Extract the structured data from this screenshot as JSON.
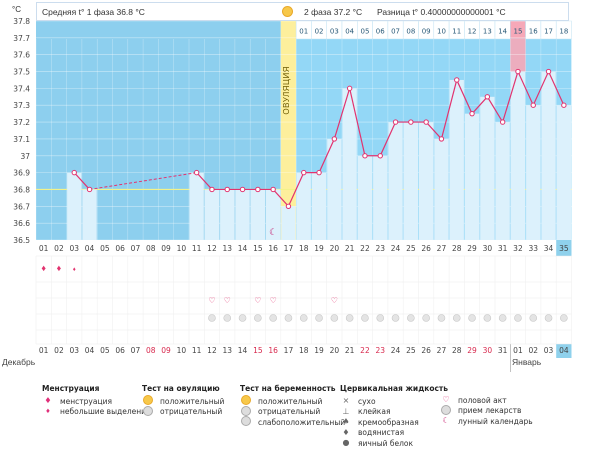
{
  "header": {
    "temp_unit": "°C",
    "phase1_label": "Средняя t° 1 фаза",
    "phase1_value": "36.8 °C",
    "phase2_label": "2 фаза",
    "phase2_value": "37.2 °C",
    "diff_label": "Разница t°",
    "diff_value": "0.40000000000001 °C"
  },
  "ovulation_label": "ОВУЛЯЦИЯ",
  "month_labels": {
    "left": "Декабрь",
    "right": "Январь"
  },
  "chart_data": {
    "type": "line",
    "ylim": [
      36.5,
      37.8
    ],
    "yticks": [
      "36.5",
      "36.6",
      "36.7",
      "36.8",
      "36.9",
      "37",
      "37.1",
      "37.2",
      "37.3",
      "37.4",
      "37.5",
      "37.6",
      "37.7",
      "37.8"
    ],
    "coverline": 36.8,
    "cycle_days": [
      "01",
      "02",
      "03",
      "04",
      "05",
      "06",
      "07",
      "08",
      "09",
      "10",
      "11",
      "12",
      "13",
      "14",
      "15",
      "16",
      "17",
      "18",
      "19",
      "20",
      "21",
      "22",
      "23",
      "24",
      "25",
      "26",
      "27",
      "28",
      "29",
      "30",
      "31",
      "32",
      "33",
      "34",
      "35"
    ],
    "phase2_days": [
      "01",
      "02",
      "03",
      "04",
      "05",
      "06",
      "07",
      "08",
      "09",
      "10",
      "11",
      "12",
      "13",
      "14",
      "15",
      "16",
      "17",
      "18"
    ],
    "dates": [
      "01",
      "02",
      "03",
      "04",
      "05",
      "06",
      "07",
      "08",
      "09",
      "10",
      "11",
      "12",
      "13",
      "14",
      "15",
      "16",
      "17",
      "18",
      "19",
      "20",
      "21",
      "22",
      "23",
      "24",
      "25",
      "26",
      "27",
      "28",
      "29",
      "30",
      "31",
      "01",
      "02",
      "03",
      "04"
    ],
    "weekend_dates": [
      8,
      9,
      15,
      16,
      22,
      23,
      29,
      30
    ],
    "today_index": 34,
    "highlight_phase2_day": 15,
    "ovulation_index": 16,
    "values": [
      null,
      null,
      36.9,
      36.8,
      null,
      null,
      null,
      null,
      null,
      null,
      36.9,
      36.8,
      36.8,
      36.8,
      36.8,
      36.8,
      36.7,
      36.9,
      36.9,
      37.1,
      37.4,
      37.0,
      37.0,
      37.2,
      37.2,
      37.2,
      37.1,
      37.45,
      37.25,
      37.35,
      37.2,
      37.5,
      37.3,
      37.5,
      37.3
    ],
    "dashed_gap": [
      4,
      10
    ],
    "menstruation_days": [
      1,
      2,
      3
    ],
    "heavy_menstruation_days": [
      1,
      2
    ],
    "intercourse_days": [
      12,
      13,
      15,
      16,
      20
    ],
    "pill_days": [
      12,
      13,
      14,
      15,
      16,
      17,
      18,
      19,
      20,
      21,
      22,
      23,
      24,
      25,
      26,
      27,
      28,
      29,
      30,
      31,
      32,
      33,
      34,
      35
    ],
    "lunar_day": 16
  },
  "legend": {
    "menstruation": {
      "title": "Менструация",
      "items": [
        "менструация",
        "небольшие выделения"
      ]
    },
    "ovulation_test": {
      "title": "Тест на овуляцию",
      "items": [
        "положительный",
        "отрицательный"
      ]
    },
    "pregnancy_test": {
      "title": "Тест на беременность",
      "items": [
        "положительный",
        "отрицательный",
        "слабоположительный"
      ]
    },
    "cervical_fluid": {
      "title": "Цервикальная жидкость",
      "items": [
        "сухо",
        "клейкая",
        "кремообразная",
        "водянистая",
        "яичный белок"
      ]
    },
    "other": {
      "items": [
        "половой акт",
        "прием лекарств",
        "лунный календарь"
      ]
    }
  },
  "colors": {
    "phase1_bg": "#8dcfee",
    "phase2_bg": "#93d7f6",
    "ovulation_band": "#fdef9c",
    "bar_fill": "#dcf1fc",
    "line": "#e2336f",
    "coverline": "#f2f28a",
    "highlight_pink": "#f6a8b8",
    "today_blue": "#8fd1ec"
  }
}
